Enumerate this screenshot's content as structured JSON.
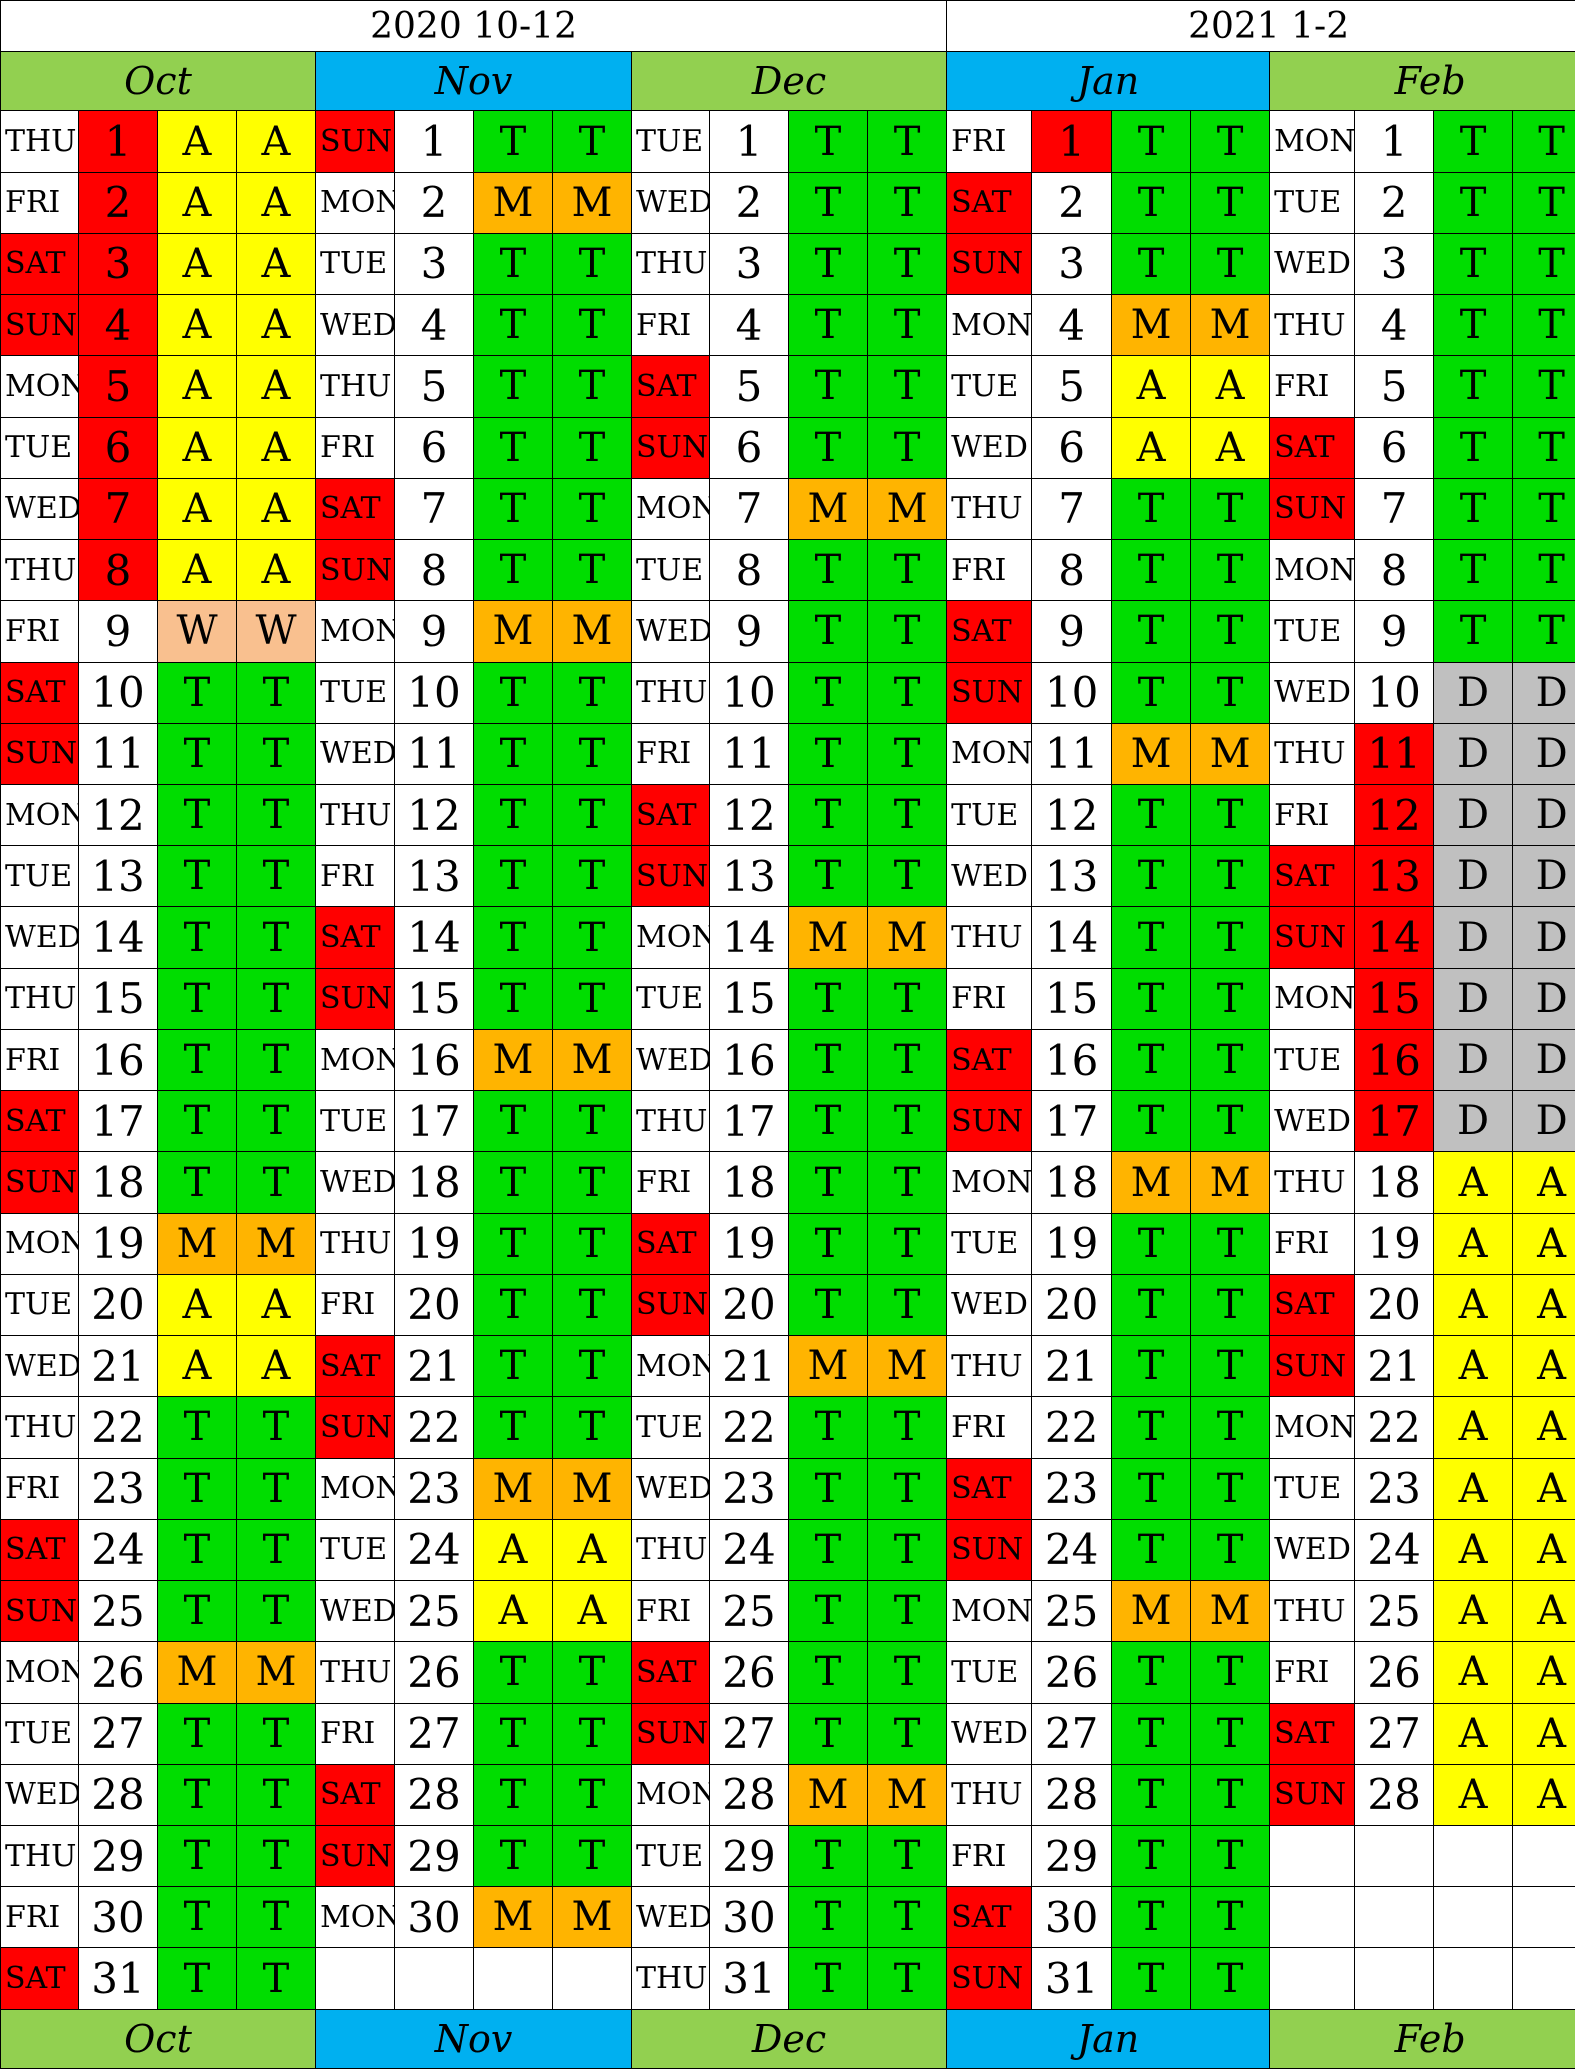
{
  "years": [
    {
      "label": "2020 10-12",
      "span": 12
    },
    {
      "label": "2021 1-2",
      "span": 8
    }
  ],
  "months": [
    {
      "name": "Oct",
      "color": "#92d050",
      "rows": [
        [
          "THU",
          "1",
          "A",
          "A"
        ],
        [
          "FRI",
          "2",
          "A",
          "A"
        ],
        [
          "SAT",
          "3",
          "A",
          "A"
        ],
        [
          "SUN",
          "4",
          "A",
          "A"
        ],
        [
          "MON",
          "5",
          "A",
          "A"
        ],
        [
          "TUE",
          "6",
          "A",
          "A"
        ],
        [
          "WED",
          "7",
          "A",
          "A"
        ],
        [
          "THU",
          "8",
          "A",
          "A"
        ],
        [
          "FRI",
          "9",
          "W",
          "W"
        ],
        [
          "SAT",
          "10",
          "T",
          "T"
        ],
        [
          "SUN",
          "11",
          "T",
          "T"
        ],
        [
          "MON",
          "12",
          "T",
          "T"
        ],
        [
          "TUE",
          "13",
          "T",
          "T"
        ],
        [
          "WED",
          "14",
          "T",
          "T"
        ],
        [
          "THU",
          "15",
          "T",
          "T"
        ],
        [
          "FRI",
          "16",
          "T",
          "T"
        ],
        [
          "SAT",
          "17",
          "T",
          "T"
        ],
        [
          "SUN",
          "18",
          "T",
          "T"
        ],
        [
          "MON",
          "19",
          "M",
          "M"
        ],
        [
          "TUE",
          "20",
          "A",
          "A"
        ],
        [
          "WED",
          "21",
          "A",
          "A"
        ],
        [
          "THU",
          "22",
          "T",
          "T"
        ],
        [
          "FRI",
          "23",
          "T",
          "T"
        ],
        [
          "SAT",
          "24",
          "T",
          "T"
        ],
        [
          "SUN",
          "25",
          "T",
          "T"
        ],
        [
          "MON",
          "26",
          "M",
          "M"
        ],
        [
          "TUE",
          "27",
          "T",
          "T"
        ],
        [
          "WED",
          "28",
          "T",
          "T"
        ],
        [
          "THU",
          "29",
          "T",
          "T"
        ],
        [
          "FRI",
          "30",
          "T",
          "T"
        ],
        [
          "SAT",
          "31",
          "T",
          "T"
        ]
      ],
      "redNums": [
        "1",
        "2",
        "3",
        "4",
        "5",
        "6",
        "7",
        "8"
      ]
    },
    {
      "name": "Nov",
      "color": "#00b0f0",
      "rows": [
        [
          "SUN",
          "1",
          "T",
          "T"
        ],
        [
          "MON",
          "2",
          "M",
          "M"
        ],
        [
          "TUE",
          "3",
          "T",
          "T"
        ],
        [
          "WED",
          "4",
          "T",
          "T"
        ],
        [
          "THU",
          "5",
          "T",
          "T"
        ],
        [
          "FRI",
          "6",
          "T",
          "T"
        ],
        [
          "SAT",
          "7",
          "T",
          "T"
        ],
        [
          "SUN",
          "8",
          "T",
          "T"
        ],
        [
          "MON",
          "9",
          "M",
          "M"
        ],
        [
          "TUE",
          "10",
          "T",
          "T"
        ],
        [
          "WED",
          "11",
          "T",
          "T"
        ],
        [
          "THU",
          "12",
          "T",
          "T"
        ],
        [
          "FRI",
          "13",
          "T",
          "T"
        ],
        [
          "SAT",
          "14",
          "T",
          "T"
        ],
        [
          "SUN",
          "15",
          "T",
          "T"
        ],
        [
          "MON",
          "16",
          "M",
          "M"
        ],
        [
          "TUE",
          "17",
          "T",
          "T"
        ],
        [
          "WED",
          "18",
          "T",
          "T"
        ],
        [
          "THU",
          "19",
          "T",
          "T"
        ],
        [
          "FRI",
          "20",
          "T",
          "T"
        ],
        [
          "SAT",
          "21",
          "T",
          "T"
        ],
        [
          "SUN",
          "22",
          "T",
          "T"
        ],
        [
          "MON",
          "23",
          "M",
          "M"
        ],
        [
          "TUE",
          "24",
          "A",
          "A"
        ],
        [
          "WED",
          "25",
          "A",
          "A"
        ],
        [
          "THU",
          "26",
          "T",
          "T"
        ],
        [
          "FRI",
          "27",
          "T",
          "T"
        ],
        [
          "SAT",
          "28",
          "T",
          "T"
        ],
        [
          "SUN",
          "29",
          "T",
          "T"
        ],
        [
          "MON",
          "30",
          "M",
          "M"
        ],
        [
          "",
          "",
          "",
          ""
        ]
      ],
      "redNums": []
    },
    {
      "name": "Dec",
      "color": "#92d050",
      "rows": [
        [
          "TUE",
          "1",
          "T",
          "T"
        ],
        [
          "WED",
          "2",
          "T",
          "T"
        ],
        [
          "THU",
          "3",
          "T",
          "T"
        ],
        [
          "FRI",
          "4",
          "T",
          "T"
        ],
        [
          "SAT",
          "5",
          "T",
          "T"
        ],
        [
          "SUN",
          "6",
          "T",
          "T"
        ],
        [
          "MON",
          "7",
          "M",
          "M"
        ],
        [
          "TUE",
          "8",
          "T",
          "T"
        ],
        [
          "WED",
          "9",
          "T",
          "T"
        ],
        [
          "THU",
          "10",
          "T",
          "T"
        ],
        [
          "FRI",
          "11",
          "T",
          "T"
        ],
        [
          "SAT",
          "12",
          "T",
          "T"
        ],
        [
          "SUN",
          "13",
          "T",
          "T"
        ],
        [
          "MON",
          "14",
          "M",
          "M"
        ],
        [
          "TUE",
          "15",
          "T",
          "T"
        ],
        [
          "WED",
          "16",
          "T",
          "T"
        ],
        [
          "THU",
          "17",
          "T",
          "T"
        ],
        [
          "FRI",
          "18",
          "T",
          "T"
        ],
        [
          "SAT",
          "19",
          "T",
          "T"
        ],
        [
          "SUN",
          "20",
          "T",
          "T"
        ],
        [
          "MON",
          "21",
          "M",
          "M"
        ],
        [
          "TUE",
          "22",
          "T",
          "T"
        ],
        [
          "WED",
          "23",
          "T",
          "T"
        ],
        [
          "THU",
          "24",
          "T",
          "T"
        ],
        [
          "FRI",
          "25",
          "T",
          "T"
        ],
        [
          "SAT",
          "26",
          "T",
          "T"
        ],
        [
          "SUN",
          "27",
          "T",
          "T"
        ],
        [
          "MON",
          "28",
          "M",
          "M"
        ],
        [
          "TUE",
          "29",
          "T",
          "T"
        ],
        [
          "WED",
          "30",
          "T",
          "T"
        ],
        [
          "THU",
          "31",
          "T",
          "T"
        ]
      ],
      "redNums": []
    },
    {
      "name": "Jan",
      "color": "#00b0f0",
      "rows": [
        [
          "FRI",
          "1",
          "T",
          "T"
        ],
        [
          "SAT",
          "2",
          "T",
          "T"
        ],
        [
          "SUN",
          "3",
          "T",
          "T"
        ],
        [
          "MON",
          "4",
          "M",
          "M"
        ],
        [
          "TUE",
          "5",
          "A",
          "A"
        ],
        [
          "WED",
          "6",
          "A",
          "A"
        ],
        [
          "THU",
          "7",
          "T",
          "T"
        ],
        [
          "FRI",
          "8",
          "T",
          "T"
        ],
        [
          "SAT",
          "9",
          "T",
          "T"
        ],
        [
          "SUN",
          "10",
          "T",
          "T"
        ],
        [
          "MON",
          "11",
          "M",
          "M"
        ],
        [
          "TUE",
          "12",
          "T",
          "T"
        ],
        [
          "WED",
          "13",
          "T",
          "T"
        ],
        [
          "THU",
          "14",
          "T",
          "T"
        ],
        [
          "FRI",
          "15",
          "T",
          "T"
        ],
        [
          "SAT",
          "16",
          "T",
          "T"
        ],
        [
          "SUN",
          "17",
          "T",
          "T"
        ],
        [
          "MON",
          "18",
          "M",
          "M"
        ],
        [
          "TUE",
          "19",
          "T",
          "T"
        ],
        [
          "WED",
          "20",
          "T",
          "T"
        ],
        [
          "THU",
          "21",
          "T",
          "T"
        ],
        [
          "FRI",
          "22",
          "T",
          "T"
        ],
        [
          "SAT",
          "23",
          "T",
          "T"
        ],
        [
          "SUN",
          "24",
          "T",
          "T"
        ],
        [
          "MON",
          "25",
          "M",
          "M"
        ],
        [
          "TUE",
          "26",
          "T",
          "T"
        ],
        [
          "WED",
          "27",
          "T",
          "T"
        ],
        [
          "THU",
          "28",
          "T",
          "T"
        ],
        [
          "FRI",
          "29",
          "T",
          "T"
        ],
        [
          "SAT",
          "30",
          "T",
          "T"
        ],
        [
          "SUN",
          "31",
          "T",
          "T"
        ]
      ],
      "redNums": [
        "1"
      ]
    },
    {
      "name": "Feb",
      "color": "#92d050",
      "rows": [
        [
          "MON",
          "1",
          "T",
          "T"
        ],
        [
          "TUE",
          "2",
          "T",
          "T"
        ],
        [
          "WED",
          "3",
          "T",
          "T"
        ],
        [
          "THU",
          "4",
          "T",
          "T"
        ],
        [
          "FRI",
          "5",
          "T",
          "T"
        ],
        [
          "SAT",
          "6",
          "T",
          "T"
        ],
        [
          "SUN",
          "7",
          "T",
          "T"
        ],
        [
          "MON",
          "8",
          "T",
          "T"
        ],
        [
          "TUE",
          "9",
          "T",
          "T"
        ],
        [
          "WED",
          "10",
          "D",
          "D"
        ],
        [
          "THU",
          "11",
          "D",
          "D"
        ],
        [
          "FRI",
          "12",
          "D",
          "D"
        ],
        [
          "SAT",
          "13",
          "D",
          "D"
        ],
        [
          "SUN",
          "14",
          "D",
          "D"
        ],
        [
          "MON",
          "15",
          "D",
          "D"
        ],
        [
          "TUE",
          "16",
          "D",
          "D"
        ],
        [
          "WED",
          "17",
          "D",
          "D"
        ],
        [
          "THU",
          "18",
          "A",
          "A"
        ],
        [
          "FRI",
          "19",
          "A",
          "A"
        ],
        [
          "SAT",
          "20",
          "A",
          "A"
        ],
        [
          "SUN",
          "21",
          "A",
          "A"
        ],
        [
          "MON",
          "22",
          "A",
          "A"
        ],
        [
          "TUE",
          "23",
          "A",
          "A"
        ],
        [
          "WED",
          "24",
          "A",
          "A"
        ],
        [
          "THU",
          "25",
          "A",
          "A"
        ],
        [
          "FRI",
          "26",
          "A",
          "A"
        ],
        [
          "SAT",
          "27",
          "A",
          "A"
        ],
        [
          "SUN",
          "28",
          "A",
          "A"
        ],
        [
          "",
          "",
          "",
          ""
        ],
        [
          "",
          "",
          "",
          ""
        ],
        [
          "",
          "",
          "",
          ""
        ]
      ],
      "redNums": [
        "11",
        "12",
        "13",
        "14",
        "15",
        "16",
        "17"
      ]
    }
  ],
  "colors": {
    "weekend": "#ff0000",
    "highlight_day": "#ff0000",
    "T": "#00dd00",
    "A": "#ffff00",
    "M": "#ffb400",
    "W": "#f9c08f",
    "D": "#c0c0c0",
    "empty": "#ffffff"
  }
}
